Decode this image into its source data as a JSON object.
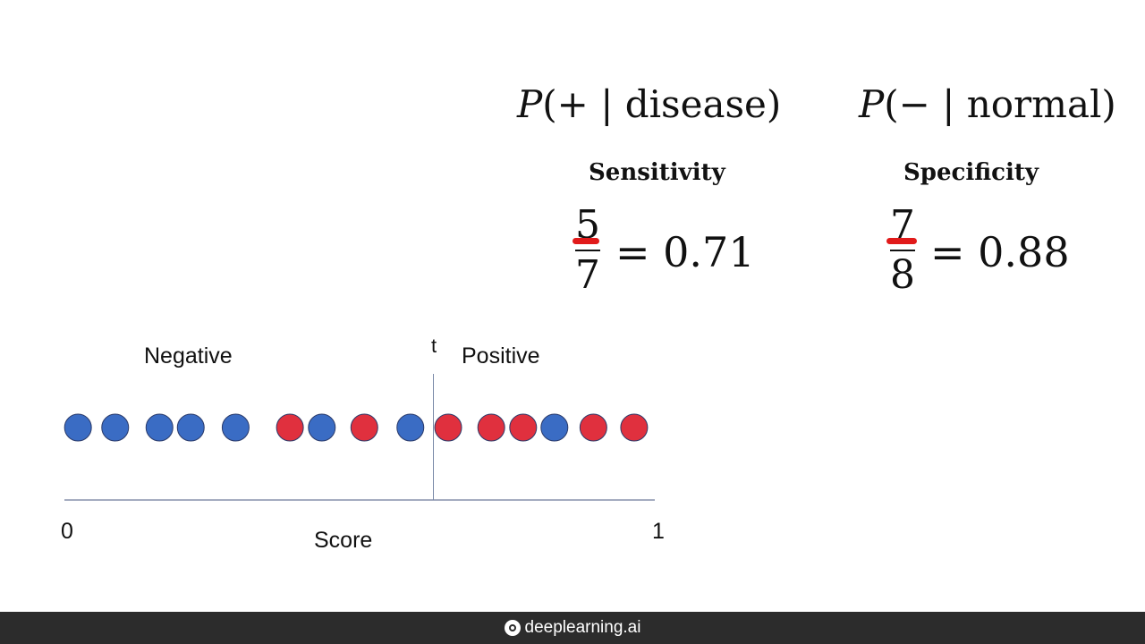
{
  "formulas": {
    "sensitivity": {
      "p": "P",
      "open": "(+",
      "bar": "|",
      "cond": "disease)"
    },
    "specificity": {
      "p": "P",
      "open": "(−",
      "bar": "|",
      "cond": "normal)"
    }
  },
  "metrics": {
    "sensitivity": {
      "title": "Sensitivity",
      "numerator": "5",
      "denominator": "7",
      "result": "= 0.71"
    },
    "specificity": {
      "title": "Specificity",
      "numerator": "7",
      "denominator": "8",
      "result": "= 0.88"
    }
  },
  "annotation_color": "#e11a1a",
  "chart_data": {
    "type": "scatter",
    "xlabel": "Score",
    "x_tick_labels": [
      "0",
      "1"
    ],
    "xlim": [
      0,
      1
    ],
    "threshold": {
      "label": "t",
      "value": 0.625
    },
    "region_labels": {
      "left": "Negative",
      "right": "Positive"
    },
    "colors": {
      "normal": "#3a6cc4",
      "disease": "#e0303e"
    },
    "points": [
      {
        "x": 0.023,
        "class": "normal"
      },
      {
        "x": 0.086,
        "class": "normal"
      },
      {
        "x": 0.161,
        "class": "normal"
      },
      {
        "x": 0.214,
        "class": "normal"
      },
      {
        "x": 0.29,
        "class": "normal"
      },
      {
        "x": 0.382,
        "class": "disease"
      },
      {
        "x": 0.436,
        "class": "normal"
      },
      {
        "x": 0.508,
        "class": "disease"
      },
      {
        "x": 0.586,
        "class": "normal"
      },
      {
        "x": 0.65,
        "class": "disease"
      },
      {
        "x": 0.723,
        "class": "disease"
      },
      {
        "x": 0.777,
        "class": "disease"
      },
      {
        "x": 0.83,
        "class": "normal"
      },
      {
        "x": 0.896,
        "class": "disease"
      },
      {
        "x": 0.965,
        "class": "disease"
      }
    ]
  },
  "footer": {
    "brand": "deeplearning.ai",
    "icon": "deeplearning-logo-icon"
  }
}
